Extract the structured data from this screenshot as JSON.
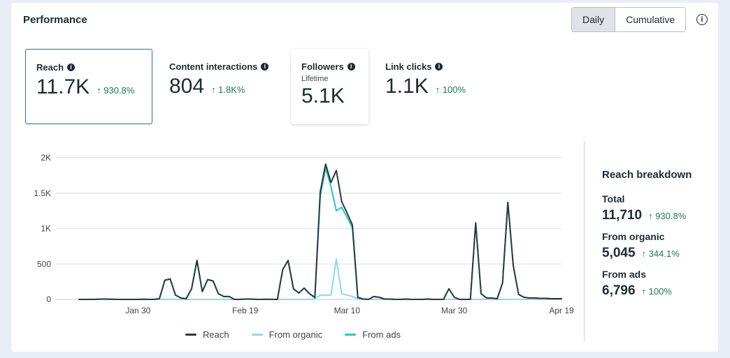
{
  "header": {
    "title": "Performance",
    "toggle_daily": "Daily",
    "toggle_cumulative": "Cumulative",
    "info": "i"
  },
  "cards": [
    {
      "label": "Reach",
      "value": "11.7K",
      "change": "↑ 930.8%"
    },
    {
      "label": "Content interactions",
      "value": "804",
      "change": "↑ 1.8K%"
    },
    {
      "label": "Followers",
      "sub": "Lifetime",
      "value": "5.1K"
    },
    {
      "label": "Link clicks",
      "value": "1.1K",
      "change": "↑ 100%"
    }
  ],
  "colors": {
    "reach": "#283a40",
    "organic": "#8fd8f0",
    "ads": "#2ec4c4",
    "positive": "#1e7b4f",
    "grid": "#dddfe2"
  },
  "chart_data": {
    "type": "line",
    "title": "Reach",
    "ylim": [
      0,
      2000
    ],
    "y_ticks": [
      0,
      500,
      1000,
      1500,
      2000
    ],
    "y_tick_labels": [
      "0",
      "500",
      "1K",
      "1.5K",
      "2K"
    ],
    "x_tick_labels": [
      "Jan 30",
      "Feb 19",
      "Mar 10",
      "Mar 30",
      "Apr 19"
    ],
    "x_tick_index": [
      11,
      31,
      50,
      70,
      90
    ],
    "num_points": 91,
    "series": [
      {
        "name": "Reach",
        "color": "#283a40",
        "values": [
          0,
          0,
          0,
          0,
          5,
          5,
          2,
          0,
          0,
          0,
          0,
          0,
          2,
          0,
          0,
          10,
          270,
          290,
          60,
          20,
          10,
          150,
          550,
          110,
          280,
          260,
          80,
          40,
          40,
          0,
          0,
          5,
          5,
          0,
          0,
          2,
          0,
          0,
          420,
          550,
          150,
          90,
          160,
          80,
          30,
          1520,
          1910,
          1650,
          1820,
          1380,
          1220,
          1050,
          30,
          5,
          0,
          40,
          30,
          5,
          5,
          0,
          0,
          5,
          0,
          0,
          0,
          5,
          0,
          0,
          0,
          150,
          30,
          0,
          0,
          0,
          1080,
          80,
          20,
          20,
          10,
          230,
          1370,
          480,
          70,
          30,
          20,
          20,
          15,
          15,
          10,
          10,
          10
        ]
      },
      {
        "name": "From organic",
        "color": "#8fd8f0",
        "values": [
          0,
          0,
          0,
          0,
          0,
          0,
          0,
          0,
          0,
          0,
          0,
          0,
          0,
          0,
          0,
          0,
          0,
          0,
          0,
          0,
          0,
          0,
          0,
          0,
          0,
          0,
          0,
          0,
          0,
          0,
          0,
          0,
          0,
          0,
          0,
          0,
          0,
          0,
          0,
          0,
          0,
          0,
          0,
          0,
          10,
          60,
          60,
          60,
          570,
          80,
          60,
          40,
          10,
          0,
          0,
          0,
          0,
          0,
          0,
          0,
          0,
          0,
          0,
          0,
          0,
          0,
          0,
          0,
          0,
          0,
          0,
          0,
          0,
          0,
          0,
          0,
          0,
          0,
          0,
          0,
          0,
          0,
          0,
          0,
          0,
          0,
          0,
          0,
          0,
          0,
          0
        ]
      },
      {
        "name": "From ads",
        "color": "#2ec4c4",
        "values": [
          0,
          0,
          0,
          0,
          5,
          5,
          2,
          0,
          0,
          0,
          0,
          0,
          2,
          0,
          0,
          10,
          270,
          290,
          60,
          20,
          10,
          150,
          550,
          110,
          280,
          260,
          80,
          40,
          40,
          0,
          0,
          5,
          5,
          0,
          0,
          2,
          0,
          0,
          420,
          550,
          150,
          90,
          160,
          80,
          20,
          1460,
          1850,
          1590,
          1250,
          1300,
          1160,
          1010,
          20,
          5,
          0,
          40,
          30,
          5,
          5,
          0,
          0,
          5,
          0,
          0,
          0,
          5,
          0,
          0,
          0,
          150,
          30,
          0,
          0,
          0,
          1080,
          80,
          20,
          20,
          10,
          230,
          1370,
          480,
          70,
          30,
          20,
          20,
          15,
          15,
          10,
          10,
          10
        ]
      }
    ]
  },
  "breakdown": {
    "title": "Reach breakdown",
    "items": [
      {
        "label": "Total",
        "value": "11,710",
        "change": "↑ 930.8%"
      },
      {
        "label": "From organic",
        "value": "5,045",
        "change": "↑ 344.1%"
      },
      {
        "label": "From ads",
        "value": "6,796",
        "change": "↑ 100%"
      }
    ]
  }
}
